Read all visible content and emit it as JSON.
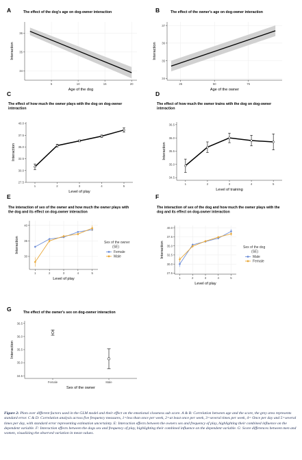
{
  "figure": {
    "panels": [
      {
        "letter": "A",
        "title": "The effect of the dog's age on dog-owner interaction"
      },
      {
        "letter": "B",
        "title": "The effect of the owner's age on dog-owner interaction"
      },
      {
        "letter": "C",
        "title": "The effect of how much the owner plays with the dog on dog-owner interaction"
      },
      {
        "letter": "D",
        "title": "The effect of how much the owner trains with the dog on dog-owner interaction"
      },
      {
        "letter": "E",
        "title": "The interaction of sex of the owner and how much the owner plays with the dog and its effect on dog-owner interaction"
      },
      {
        "letter": "F",
        "title": "The interaction of sex of the dog and how much the owner plays with the dog and its effect on dog-owner interaction"
      },
      {
        "letter": "G",
        "title": "The effect of the owner's sex on dog-owner interaction"
      }
    ],
    "caption": {
      "label": "Figure 2:",
      "text": "Plots over different factors used in the GLM model and their effect on the emotional closeness sub score. A & B: Correlation between age and the score, the grey area represents standard error. C & D: Correlation analysis across five frequency measures, 1=less than once per week, 2=at least once per week, 3=several times per week, 4= Once per day and 5=several times per day, with standard error representing estimation uncertainty. E: Interaction effects between the owners sex and frequency of play, highlighting their combined influence on the dependent variable. F: Interaction effects between the dogs sex and frequency of play, highlighting their combined influence on the dependent variable. G: Score differences between men and women, visualizing the observed variation in mean values."
    }
  },
  "chart_data": [
    {
      "type": "line",
      "ylabel": "Interaction",
      "xlabel": "Age of the dog",
      "xlim": [
        0,
        21
      ],
      "ylim": [
        33.5,
        36.6
      ],
      "xticks": [
        5,
        10,
        15,
        20
      ],
      "yticks": [
        34,
        35,
        36
      ],
      "x": [
        1,
        20
      ],
      "y": [
        36.1,
        33.9
      ],
      "se_lower": [
        35.9,
        33.6
      ],
      "se_upper": [
        36.3,
        34.2
      ],
      "band_color": "#cccccc"
    },
    {
      "type": "line",
      "ylabel": "Interaction",
      "xlabel": "Age of the owner",
      "xlim": [
        15,
        100
      ],
      "ylim": [
        33.9,
        37.2
      ],
      "xticks": [
        25,
        50,
        75
      ],
      "yticks": [
        34,
        35,
        36,
        37
      ],
      "x": [
        18,
        95
      ],
      "y": [
        34.7,
        36.7
      ],
      "se_lower": [
        34.4,
        36.4
      ],
      "se_upper": [
        35.0,
        37.0
      ],
      "band_color": "#cccccc"
    },
    {
      "type": "line",
      "ylabel": "Interaction",
      "xlabel": "Level of play",
      "xlim": [
        0.6,
        5.4
      ],
      "ylim": [
        27.5,
        40.3
      ],
      "xticks": [
        1,
        2,
        3,
        4,
        5
      ],
      "yticks": [
        27.5,
        30.0,
        32.5,
        35.0,
        37.5,
        40.0
      ],
      "x": [
        1,
        2,
        3,
        4,
        5
      ],
      "y": [
        30.8,
        35.3,
        36.3,
        37.3,
        38.6
      ],
      "err": [
        0.6,
        0.3,
        0.2,
        0.25,
        0.45
      ]
    },
    {
      "type": "line",
      "ylabel": "Interaction",
      "xlabel": "Level of training",
      "xlim": [
        0.6,
        5.4
      ],
      "ylim": [
        34.4,
        36.6
      ],
      "xticks": [
        1,
        2,
        3,
        4,
        5
      ],
      "yticks": [
        34.5,
        35.0,
        35.5,
        36.0,
        36.5
      ],
      "x": [
        1,
        2,
        3,
        4,
        5
      ],
      "y": [
        34.95,
        35.65,
        36.0,
        35.9,
        35.85
      ],
      "err": [
        0.25,
        0.2,
        0.18,
        0.2,
        0.3
      ]
    },
    {
      "type": "line",
      "ylabel": "Interaction",
      "xlabel": "Level of play",
      "xlim": [
        0.6,
        5.4
      ],
      "ylim": [
        25.8,
        41.5
      ],
      "xticks": [
        1,
        2,
        3,
        4,
        5
      ],
      "yticks": [
        30,
        35,
        40
      ],
      "x": [
        1,
        2,
        3,
        4,
        5
      ],
      "legend_title": "Sex of the owner\n(SE)",
      "legend_position": "right",
      "series": [
        {
          "name": "Female",
          "color": "#6f8fd8",
          "values": [
            33.1,
            35.6,
            36.2,
            37.9,
            38.6
          ],
          "err": [
            0.3,
            0.3,
            0.2,
            0.2,
            0.4
          ]
        },
        {
          "name": "Male",
          "color": "#e8a83a",
          "values": [
            28.2,
            35.0,
            36.5,
            37.2,
            39.1
          ],
          "err": [
            1.5,
            0.5,
            0.4,
            0.4,
            0.9
          ]
        }
      ]
    },
    {
      "type": "line",
      "ylabel": "Interaction",
      "xlabel": "Level of play",
      "xlim": [
        0.6,
        5.4
      ],
      "ylim": [
        27.2,
        40.6
      ],
      "xticks": [
        1,
        2,
        3,
        4,
        5
      ],
      "yticks": [
        27.5,
        30.0,
        32.5,
        35.0,
        37.5,
        40.0
      ],
      "x": [
        1,
        2,
        3,
        4,
        5
      ],
      "legend_title": "Sex of the dog\n(SE)",
      "legend_position": "right",
      "series": [
        {
          "name": "Male",
          "color": "#6f8fd8",
          "values": [
            30.0,
            35.3,
            36.2,
            37.1,
            39.0
          ],
          "err": [
            0.8,
            0.4,
            0.3,
            0.3,
            0.6
          ]
        },
        {
          "name": "Female",
          "color": "#e8a83a",
          "values": [
            31.3,
            34.9,
            36.3,
            37.4,
            38.3
          ],
          "err": [
            0.7,
            0.4,
            0.3,
            0.3,
            0.5
          ]
        }
      ]
    },
    {
      "type": "scatter",
      "ylabel": "Interaction",
      "xlabel": "Sex of the owner",
      "categories": [
        "Female",
        "Male"
      ],
      "ylim": [
        34.4,
        36.6
      ],
      "yticks": [
        34.5,
        35.0,
        35.5,
        36.0,
        36.5
      ],
      "values": [
        36.15,
        35.15
      ],
      "err": [
        0.1,
        0.38
      ]
    }
  ]
}
